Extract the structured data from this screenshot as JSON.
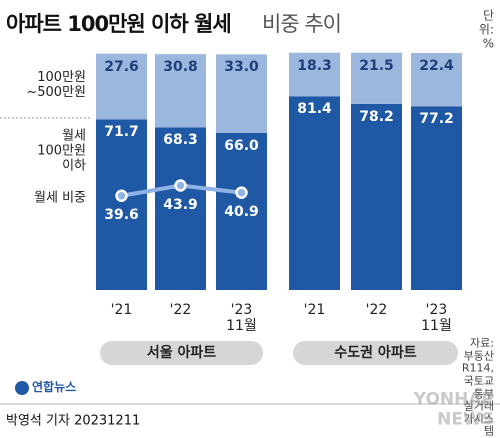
{
  "title": "아파트 100만원 이하 월세",
  "subtitle": "비중 추이",
  "unit": "단위: %",
  "source": "자료: 부동산R114, 국토교통부 실거래가시스템",
  "agency": "연합뉴스",
  "watermark": "YONHAP NEWS",
  "byline": "박영석 기자  20231211",
  "chart_data": [
    {
      "type": "bar",
      "stacked": true,
      "panel": "서울 아파트",
      "categories": [
        "'21",
        "'22",
        "'23\n11월"
      ],
      "ylim": [
        0,
        100
      ],
      "series": [
        {
          "name": "월세\n100만원\n이하",
          "color": "#1f58a5",
          "values": [
            71.7,
            68.3,
            66
          ],
          "value_labels": [
            "71.7",
            "68.3",
            "66.0"
          ]
        },
        {
          "name": "100만원\n~500만원",
          "color": "#9cb7de",
          "values": [
            27.6,
            30.8,
            33
          ],
          "value_labels": [
            "27.6",
            "30.8",
            "33.0"
          ]
        },
        {
          "name": "월세 비중",
          "type": "line",
          "color": "#8fb3e6",
          "values": [
            39.6,
            43.9,
            40.9
          ]
        }
      ]
    },
    {
      "type": "bar",
      "stacked": true,
      "panel": "수도권 아파트",
      "categories": [
        "'21",
        "'22",
        "'23\n11월"
      ],
      "ylim": [
        0,
        100
      ],
      "series": [
        {
          "name": "월세\n100만원\n이하",
          "color": "#1f58a5",
          "values": [
            81.4,
            78.2,
            77.2
          ]
        },
        {
          "name": "100만원\n~500만원",
          "color": "#9cb7de",
          "values": [
            18.3,
            21.5,
            22.4
          ]
        }
      ]
    }
  ]
}
